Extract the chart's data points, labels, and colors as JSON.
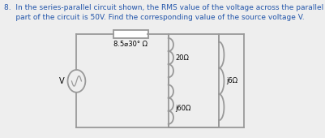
{
  "title_line1": "8.  In the series-parallel circuit shown, the RMS value of the voltage across the parallel",
  "title_line2": "     part of the circuit is 50V. Find the corresponding value of the source voltage V.",
  "bg_color": "#eeeeee",
  "text_color": "#2255aa",
  "circuit_color": "#999999",
  "label_series": "8.5⌀30° Ω",
  "label_20": "20Ω",
  "label_j60": "j60Ω",
  "label_j6": "j6Ω",
  "label_V": "V",
  "fig_w": 4.02,
  "fig_h": 1.7,
  "dpi": 100
}
